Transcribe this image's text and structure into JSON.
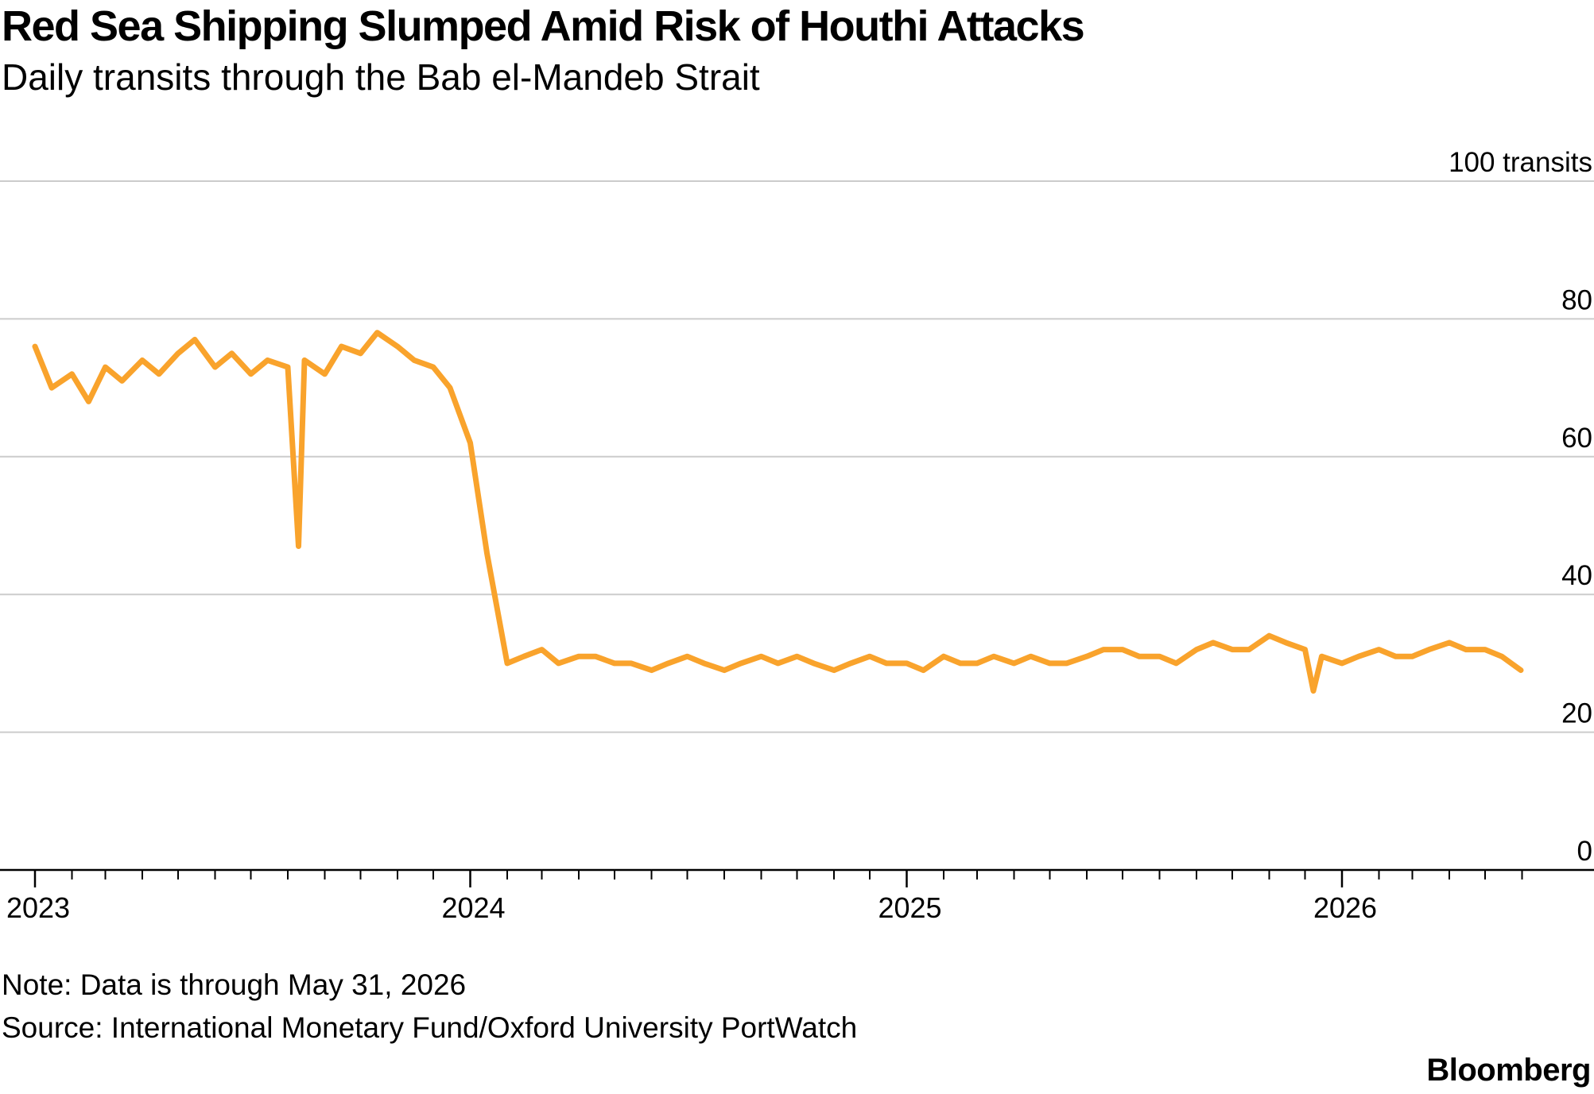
{
  "header": {
    "title": "Red Sea Shipping Slumped Amid Risk of Houthi Attacks",
    "subtitle": "Daily transits through the Bab el-Mandeb Strait"
  },
  "footer": {
    "note": "Note: Data is through May 31, 2026",
    "source": "Source: International Monetary Fund/Oxford University PortWatch",
    "brand": "Bloomberg"
  },
  "colors": {
    "line": "#F9A32C",
    "grid": "#CCCCCC",
    "axis": "#000000"
  },
  "chart_data": {
    "type": "line",
    "title": "Red Sea Shipping Slumped Amid Risk of Houthi Attacks",
    "subtitle": "Daily transits through the Bab el-Mandeb Strait",
    "y_unit_label": "100 transits",
    "y_tick_values": [
      0,
      20,
      40,
      60,
      80,
      100
    ],
    "y_tick_labels": [
      "0",
      "20",
      "40",
      "60",
      "80",
      "100 transits"
    ],
    "ylim": [
      0,
      100
    ],
    "xlim": [
      "2023-01-01",
      "2026-06-08"
    ],
    "x_tick_labels": [
      "2023",
      "2024",
      "2025",
      "2026"
    ],
    "x_tick_dates": [
      "2023-01-01",
      "2024-01-01",
      "2025-01-01",
      "2026-01-01"
    ],
    "grid": true,
    "series": [
      {
        "color": "#F9A32C",
        "x": [
          "2023-01-01",
          "2023-01-15",
          "2023-02-01",
          "2023-02-15",
          "2023-03-01",
          "2023-03-15",
          "2023-04-01",
          "2023-04-15",
          "2023-05-01",
          "2023-05-15",
          "2023-06-01",
          "2023-06-15",
          "2023-07-01",
          "2023-07-15",
          "2023-08-01",
          "2023-08-10",
          "2023-08-15",
          "2023-09-01",
          "2023-09-15",
          "2023-10-01",
          "2023-10-15",
          "2023-11-01",
          "2023-11-15",
          "2023-12-01",
          "2023-12-15",
          "2024-01-01",
          "2024-01-15",
          "2024-02-01",
          "2024-02-15",
          "2024-03-01",
          "2024-03-15",
          "2024-04-01",
          "2024-04-15",
          "2024-05-01",
          "2024-05-15",
          "2024-06-01",
          "2024-06-15",
          "2024-07-01",
          "2024-07-15",
          "2024-08-01",
          "2024-08-15",
          "2024-09-01",
          "2024-09-15",
          "2024-10-01",
          "2024-10-15",
          "2024-11-01",
          "2024-11-15",
          "2024-12-01",
          "2024-12-15",
          "2025-01-01",
          "2025-01-15",
          "2025-02-01",
          "2025-02-15",
          "2025-03-01",
          "2025-03-15",
          "2025-04-01",
          "2025-04-15",
          "2025-05-01",
          "2025-05-15",
          "2025-06-01",
          "2025-06-15",
          "2025-07-01",
          "2025-07-15",
          "2025-08-01",
          "2025-08-15",
          "2025-09-01",
          "2025-09-15",
          "2025-10-01",
          "2025-10-15",
          "2025-11-01",
          "2025-11-15",
          "2025-12-01",
          "2025-12-08",
          "2025-12-15",
          "2026-01-01",
          "2026-01-15",
          "2026-02-01",
          "2026-02-15",
          "2026-03-01",
          "2026-03-15",
          "2026-04-01",
          "2026-04-15",
          "2026-05-01",
          "2026-05-15",
          "2026-05-31"
        ],
        "y": [
          76,
          70,
          72,
          68,
          73,
          71,
          74,
          72,
          75,
          77,
          73,
          75,
          72,
          74,
          73,
          47,
          74,
          72,
          76,
          75,
          78,
          76,
          74,
          73,
          70,
          62,
          46,
          30,
          31,
          32,
          30,
          31,
          31,
          30,
          30,
          29,
          30,
          31,
          30,
          29,
          30,
          31,
          30,
          31,
          30,
          29,
          30,
          31,
          30,
          30,
          29,
          31,
          30,
          30,
          31,
          30,
          31,
          30,
          30,
          31,
          32,
          32,
          31,
          31,
          30,
          32,
          33,
          32,
          32,
          34,
          33,
          32,
          26,
          31,
          30,
          31,
          32,
          31,
          31,
          32,
          33,
          32,
          32,
          31,
          29
        ]
      }
    ]
  }
}
